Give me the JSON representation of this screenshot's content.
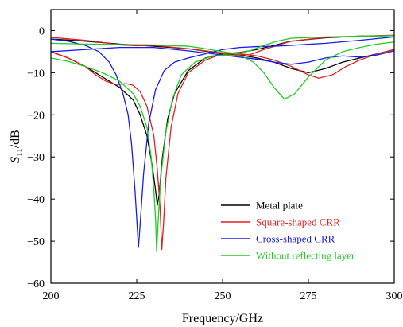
{
  "chart_data": {
    "type": "line",
    "xlabel": "Frequency/GHz",
    "ylabel": {
      "main": "S",
      "sub": "11",
      "suffix": "/dB"
    },
    "xlim": [
      200,
      300
    ],
    "ylim": [
      -60,
      5
    ],
    "xticks": [
      200,
      225,
      250,
      275,
      300
    ],
    "yticks": [
      0,
      -10,
      -20,
      -30,
      -40,
      -50,
      -60
    ],
    "grid": false,
    "legend_position": "bottom-right",
    "series": [
      {
        "name": "Metal plate",
        "color": "#000000",
        "points": [
          [
            200,
            -5
          ],
          [
            205,
            -6.5
          ],
          [
            210,
            -8.5
          ],
          [
            215,
            -11
          ],
          [
            220,
            -13.5
          ],
          [
            224,
            -16.5
          ],
          [
            226,
            -20
          ],
          [
            228,
            -25
          ],
          [
            229.5,
            -32
          ],
          [
            230.5,
            -38
          ],
          [
            231,
            -41.5
          ],
          [
            231.5,
            -39
          ],
          [
            232.5,
            -30
          ],
          [
            234,
            -21
          ],
          [
            236,
            -15
          ],
          [
            240,
            -9.5
          ],
          [
            245,
            -6.5
          ],
          [
            250,
            -5.5
          ],
          [
            255,
            -5.8
          ],
          [
            260,
            -6.5
          ],
          [
            265,
            -7.5
          ],
          [
            270,
            -9
          ],
          [
            275,
            -10
          ],
          [
            280,
            -9
          ],
          [
            285,
            -7.5
          ],
          [
            290,
            -6.5
          ],
          [
            295,
            -5.5
          ],
          [
            300,
            -4.5
          ]
        ]
      },
      {
        "name": "Metal plate",
        "color": "#000000",
        "points": [
          [
            200,
            -2
          ],
          [
            210,
            -2.5
          ],
          [
            220,
            -3.2
          ],
          [
            230,
            -3.7
          ],
          [
            240,
            -4.3
          ],
          [
            250,
            -5.5
          ],
          [
            255,
            -5.2
          ],
          [
            260,
            -4.5
          ],
          [
            265,
            -3.5
          ],
          [
            270,
            -2.5
          ],
          [
            280,
            -1.7
          ],
          [
            290,
            -1.3
          ],
          [
            300,
            -1.2
          ]
        ]
      },
      {
        "name": "Square-shaped CRR",
        "color": "#e02020",
        "points": [
          [
            200,
            -5
          ],
          [
            205,
            -6.5
          ],
          [
            210,
            -8.5
          ],
          [
            213,
            -10.5
          ],
          [
            216,
            -12
          ],
          [
            219,
            -12.8
          ],
          [
            222,
            -12.6
          ],
          [
            224,
            -13
          ],
          [
            226,
            -14.5
          ],
          [
            228,
            -18
          ],
          [
            230,
            -25
          ],
          [
            231,
            -33
          ],
          [
            231.8,
            -42
          ],
          [
            232.3,
            -52
          ],
          [
            232.8,
            -46
          ],
          [
            233.5,
            -35
          ],
          [
            235,
            -23
          ],
          [
            237,
            -15
          ],
          [
            240,
            -10
          ],
          [
            245,
            -7
          ],
          [
            250,
            -5.5
          ],
          [
            255,
            -5.5
          ],
          [
            260,
            -6
          ],
          [
            265,
            -7
          ],
          [
            270,
            -8.5
          ],
          [
            275,
            -10.5
          ],
          [
            278,
            -11.3
          ],
          [
            282,
            -10.5
          ],
          [
            286,
            -8.5
          ],
          [
            290,
            -7
          ],
          [
            295,
            -5.5
          ],
          [
            300,
            -4.5
          ]
        ]
      },
      {
        "name": "Square-shaped CRR",
        "color": "#e02020",
        "points": [
          [
            200,
            -1.6
          ],
          [
            210,
            -2.3
          ],
          [
            215,
            -2.8
          ],
          [
            220,
            -3.4
          ],
          [
            225,
            -3.6
          ],
          [
            230,
            -3.5
          ],
          [
            235,
            -3.9
          ],
          [
            240,
            -4.3
          ],
          [
            245,
            -4.8
          ],
          [
            250,
            -5.3
          ],
          [
            255,
            -5.8
          ],
          [
            258,
            -5.7
          ],
          [
            262,
            -4.5
          ],
          [
            266,
            -3.5
          ],
          [
            270,
            -2.5
          ],
          [
            280,
            -1.6
          ],
          [
            290,
            -1.3
          ],
          [
            300,
            -1.1
          ]
        ]
      },
      {
        "name": "Cross-shaped CRR",
        "color": "#1a1aee",
        "points": [
          [
            200,
            -2
          ],
          [
            205,
            -2.5
          ],
          [
            210,
            -3.5
          ],
          [
            214,
            -5
          ],
          [
            217,
            -7.5
          ],
          [
            219,
            -10.5
          ],
          [
            221,
            -15
          ],
          [
            222.5,
            -20
          ],
          [
            223.5,
            -27
          ],
          [
            224.5,
            -38
          ],
          [
            225.1,
            -46
          ],
          [
            225.5,
            -51.5
          ],
          [
            226,
            -46
          ],
          [
            227,
            -34
          ],
          [
            228.5,
            -22
          ],
          [
            230.5,
            -14
          ],
          [
            233,
            -9.5
          ],
          [
            236,
            -7.5
          ],
          [
            240,
            -6.5
          ],
          [
            245,
            -5.5
          ],
          [
            250,
            -4.5
          ],
          [
            255,
            -4
          ],
          [
            260,
            -3.8
          ],
          [
            265,
            -3.7
          ],
          [
            270,
            -3.5
          ],
          [
            280,
            -3
          ],
          [
            290,
            -2.3
          ],
          [
            300,
            -1.5
          ]
        ]
      },
      {
        "name": "Cross-shaped CRR",
        "color": "#1a1aee",
        "points": [
          [
            200,
            -5
          ],
          [
            210,
            -4.5
          ],
          [
            220,
            -4
          ],
          [
            230,
            -4
          ],
          [
            240,
            -4.8
          ],
          [
            250,
            -5.8
          ],
          [
            255,
            -6.3
          ],
          [
            260,
            -6.8
          ],
          [
            265,
            -7.5
          ],
          [
            270,
            -8
          ],
          [
            275,
            -7.5
          ],
          [
            280,
            -6.5
          ],
          [
            285,
            -6
          ],
          [
            290,
            -6.3
          ],
          [
            295,
            -5.8
          ],
          [
            300,
            -4.8
          ]
        ]
      },
      {
        "name": "Without reflecting layer",
        "color": "#22cc22",
        "points": [
          [
            200,
            -6.5
          ],
          [
            205,
            -7.3
          ],
          [
            210,
            -8.5
          ],
          [
            215,
            -10
          ],
          [
            220,
            -12
          ],
          [
            224,
            -15
          ],
          [
            226,
            -18
          ],
          [
            228,
            -23
          ],
          [
            229.2,
            -30
          ],
          [
            230,
            -38
          ],
          [
            230.5,
            -45
          ],
          [
            230.8,
            -52.5
          ],
          [
            231.2,
            -46
          ],
          [
            232,
            -35
          ],
          [
            233.5,
            -24
          ],
          [
            235.5,
            -16
          ],
          [
            238,
            -10.5
          ],
          [
            242,
            -7.5
          ],
          [
            247,
            -6
          ],
          [
            252,
            -5.8
          ],
          [
            256,
            -6.2
          ],
          [
            259,
            -7.5
          ],
          [
            262,
            -10
          ],
          [
            265,
            -13.5
          ],
          [
            268,
            -16.3
          ],
          [
            271,
            -15
          ],
          [
            275,
            -11
          ],
          [
            280,
            -7
          ],
          [
            285,
            -5
          ],
          [
            290,
            -4
          ],
          [
            295,
            -3.2
          ],
          [
            300,
            -2.7
          ]
        ]
      },
      {
        "name": "Without reflecting layer",
        "color": "#22cc22",
        "points": [
          [
            200,
            -3
          ],
          [
            210,
            -3.2
          ],
          [
            220,
            -3.3
          ],
          [
            230,
            -3.4
          ],
          [
            240,
            -3.7
          ],
          [
            245,
            -4.3
          ],
          [
            250,
            -5
          ],
          [
            254,
            -5.5
          ],
          [
            258,
            -4.8
          ],
          [
            262,
            -3.5
          ],
          [
            266,
            -2.5
          ],
          [
            270,
            -1.8
          ],
          [
            280,
            -1.5
          ],
          [
            290,
            -1.3
          ],
          [
            300,
            -1.2
          ]
        ]
      }
    ],
    "legend": [
      {
        "label": "Metal plate",
        "color": "#000000"
      },
      {
        "label": "Square-shaped CRR",
        "color": "#e02020"
      },
      {
        "label": "Cross-shaped CRR",
        "color": "#1a1aee"
      },
      {
        "label": "Without reflecting layer",
        "color": "#22cc22"
      }
    ]
  }
}
